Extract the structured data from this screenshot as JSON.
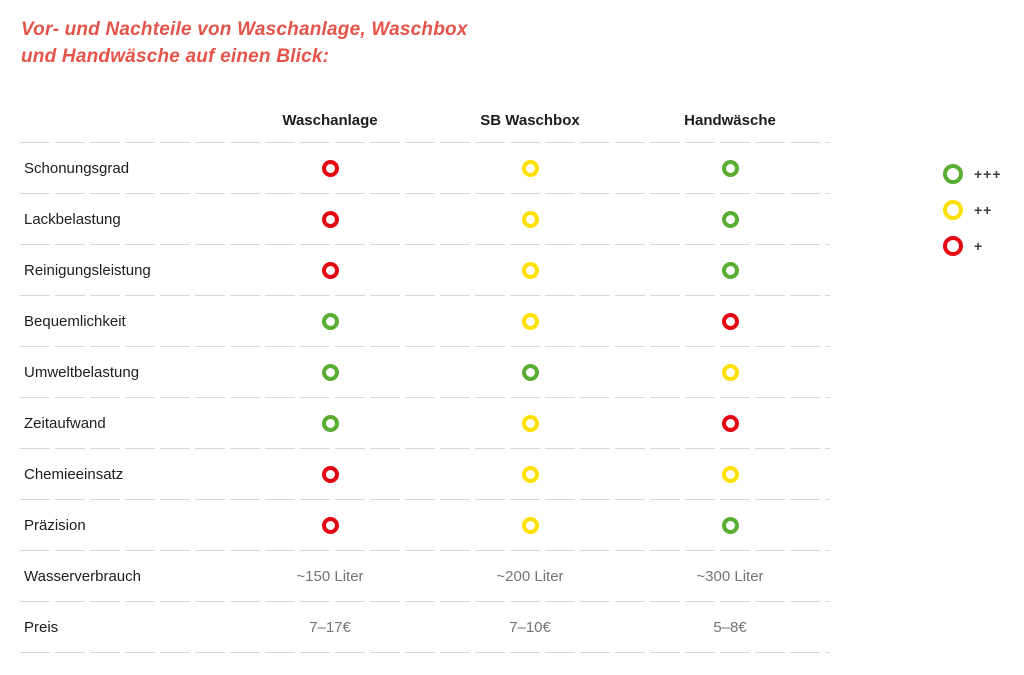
{
  "title": {
    "line1": "Vor- und Nachteile von Waschanlage, Waschbox",
    "line2": "und Handwäsche auf einen Blick:"
  },
  "table": {
    "columns": [
      "Waschanlage",
      "SB Waschbox",
      "Handwäsche"
    ],
    "rating_rows": [
      {
        "label": "Schonungsgrad",
        "ratings": [
          "red",
          "yellow",
          "green"
        ]
      },
      {
        "label": "Lackbelastung",
        "ratings": [
          "red",
          "yellow",
          "green"
        ]
      },
      {
        "label": "Reinigungsleistung",
        "ratings": [
          "red",
          "yellow",
          "green"
        ]
      },
      {
        "label": "Bequemlichkeit",
        "ratings": [
          "green",
          "yellow",
          "red"
        ]
      },
      {
        "label": "Umweltbelastung",
        "ratings": [
          "green",
          "green",
          "yellow"
        ]
      },
      {
        "label": "Zeitaufwand",
        "ratings": [
          "green",
          "yellow",
          "red"
        ]
      },
      {
        "label": "Chemieeinsatz",
        "ratings": [
          "red",
          "yellow",
          "yellow"
        ]
      },
      {
        "label": "Präzision",
        "ratings": [
          "red",
          "yellow",
          "green"
        ]
      }
    ],
    "text_rows": [
      {
        "label": "Wasserverbrauch",
        "values": [
          "~150 Liter",
          "~200 Liter",
          "~300 Liter"
        ]
      },
      {
        "label": "Preis",
        "values": [
          "7–17€",
          "7–10€",
          "5–8€"
        ]
      }
    ]
  },
  "legend": {
    "items": [
      {
        "rating": "green",
        "label": "+++"
      },
      {
        "rating": "yellow",
        "label": "++"
      },
      {
        "rating": "red",
        "label": "+"
      }
    ]
  },
  "colors": {
    "red": "#e30613",
    "yellow": "#ffe000",
    "green": "#5aad33",
    "title": "#e4544a",
    "label_text": "#1d1d1b",
    "value_text": "#757575",
    "divider": "#d8d8d8",
    "legend_text": "#3d3d3d"
  }
}
